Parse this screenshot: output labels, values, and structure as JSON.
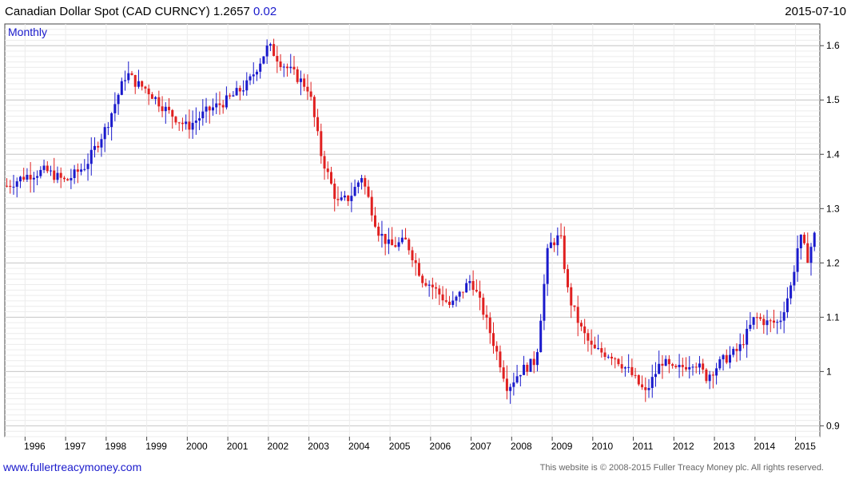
{
  "header": {
    "title": "Canadian Dollar Spot (CAD CURNCY) 1.2657",
    "change": "0.02",
    "date": "2015-07-10"
  },
  "footer": {
    "website": "www.fullertreacymoney.com",
    "copyright": "This website is © 2008-2015 Fuller Treacy Money plc. All rights reserved."
  },
  "colors": {
    "up": "#1a1acc",
    "down": "#e02020",
    "grid": "#c8c8c8",
    "minor_grid": "#ececec"
  },
  "chart_data": {
    "type": "ohlc-candlestick",
    "period_label": "Monthly",
    "x_ticks": [
      "1996",
      "1997",
      "1998",
      "1999",
      "2000",
      "2001",
      "2002",
      "2003",
      "2004",
      "2005",
      "2006",
      "2007",
      "2008",
      "2009",
      "2010",
      "2011",
      "2012",
      "2013",
      "2014",
      "2015"
    ],
    "y_ticks": [
      "0.9",
      "1",
      "1.1",
      "1.2",
      "1.3",
      "1.4",
      "1.5",
      "1.6"
    ],
    "ylim": [
      0.88,
      1.64
    ],
    "xlim": [
      1995.5,
      2015.6
    ],
    "closes": [
      {
        "t": 1995.5,
        "c": 1.34
      },
      {
        "t": 1996.0,
        "c": 1.36
      },
      {
        "t": 1996.5,
        "c": 1.37
      },
      {
        "t": 1997.0,
        "c": 1.35
      },
      {
        "t": 1997.5,
        "c": 1.38
      },
      {
        "t": 1998.0,
        "c": 1.45
      },
      {
        "t": 1998.5,
        "c": 1.55
      },
      {
        "t": 1998.75,
        "c": 1.53
      },
      {
        "t": 1999.0,
        "c": 1.52
      },
      {
        "t": 1999.5,
        "c": 1.48
      },
      {
        "t": 2000.0,
        "c": 1.45
      },
      {
        "t": 2000.5,
        "c": 1.48
      },
      {
        "t": 2001.0,
        "c": 1.5
      },
      {
        "t": 2001.5,
        "c": 1.53
      },
      {
        "t": 2002.0,
        "c": 1.6
      },
      {
        "t": 2002.3,
        "c": 1.57
      },
      {
        "t": 2002.6,
        "c": 1.55
      },
      {
        "t": 2003.0,
        "c": 1.52
      },
      {
        "t": 2003.3,
        "c": 1.4
      },
      {
        "t": 2003.7,
        "c": 1.31
      },
      {
        "t": 2004.0,
        "c": 1.32
      },
      {
        "t": 2004.3,
        "c": 1.36
      },
      {
        "t": 2004.7,
        "c": 1.26
      },
      {
        "t": 2005.0,
        "c": 1.23
      },
      {
        "t": 2005.4,
        "c": 1.24
      },
      {
        "t": 2005.8,
        "c": 1.17
      },
      {
        "t": 2006.0,
        "c": 1.16
      },
      {
        "t": 2006.5,
        "c": 1.12
      },
      {
        "t": 2007.0,
        "c": 1.17
      },
      {
        "t": 2007.3,
        "c": 1.11
      },
      {
        "t": 2007.7,
        "c": 1.02
      },
      {
        "t": 2007.9,
        "c": 0.97
      },
      {
        "t": 2008.2,
        "c": 1.0
      },
      {
        "t": 2008.6,
        "c": 1.02
      },
      {
        "t": 2008.9,
        "c": 1.23
      },
      {
        "t": 2009.2,
        "c": 1.25
      },
      {
        "t": 2009.4,
        "c": 1.14
      },
      {
        "t": 2009.7,
        "c": 1.08
      },
      {
        "t": 2010.0,
        "c": 1.04
      },
      {
        "t": 2010.5,
        "c": 1.03
      },
      {
        "t": 2010.9,
        "c": 1.0
      },
      {
        "t": 2011.3,
        "c": 0.96
      },
      {
        "t": 2011.7,
        "c": 1.02
      },
      {
        "t": 2012.0,
        "c": 1.0
      },
      {
        "t": 2012.5,
        "c": 1.02
      },
      {
        "t": 2012.8,
        "c": 0.99
      },
      {
        "t": 2013.2,
        "c": 1.02
      },
      {
        "t": 2013.6,
        "c": 1.04
      },
      {
        "t": 2014.0,
        "c": 1.1
      },
      {
        "t": 2014.3,
        "c": 1.09
      },
      {
        "t": 2014.6,
        "c": 1.09
      },
      {
        "t": 2014.9,
        "c": 1.16
      },
      {
        "t": 2015.1,
        "c": 1.25
      },
      {
        "t": 2015.3,
        "c": 1.21
      },
      {
        "t": 2015.53,
        "c": 1.2657
      }
    ]
  }
}
